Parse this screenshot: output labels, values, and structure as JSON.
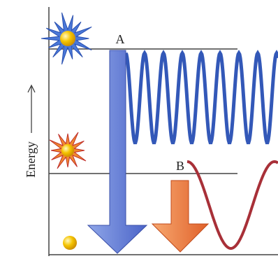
{
  "labels": {
    "level_a": "A",
    "level_b": "B",
    "axis": "Energy"
  }
}
